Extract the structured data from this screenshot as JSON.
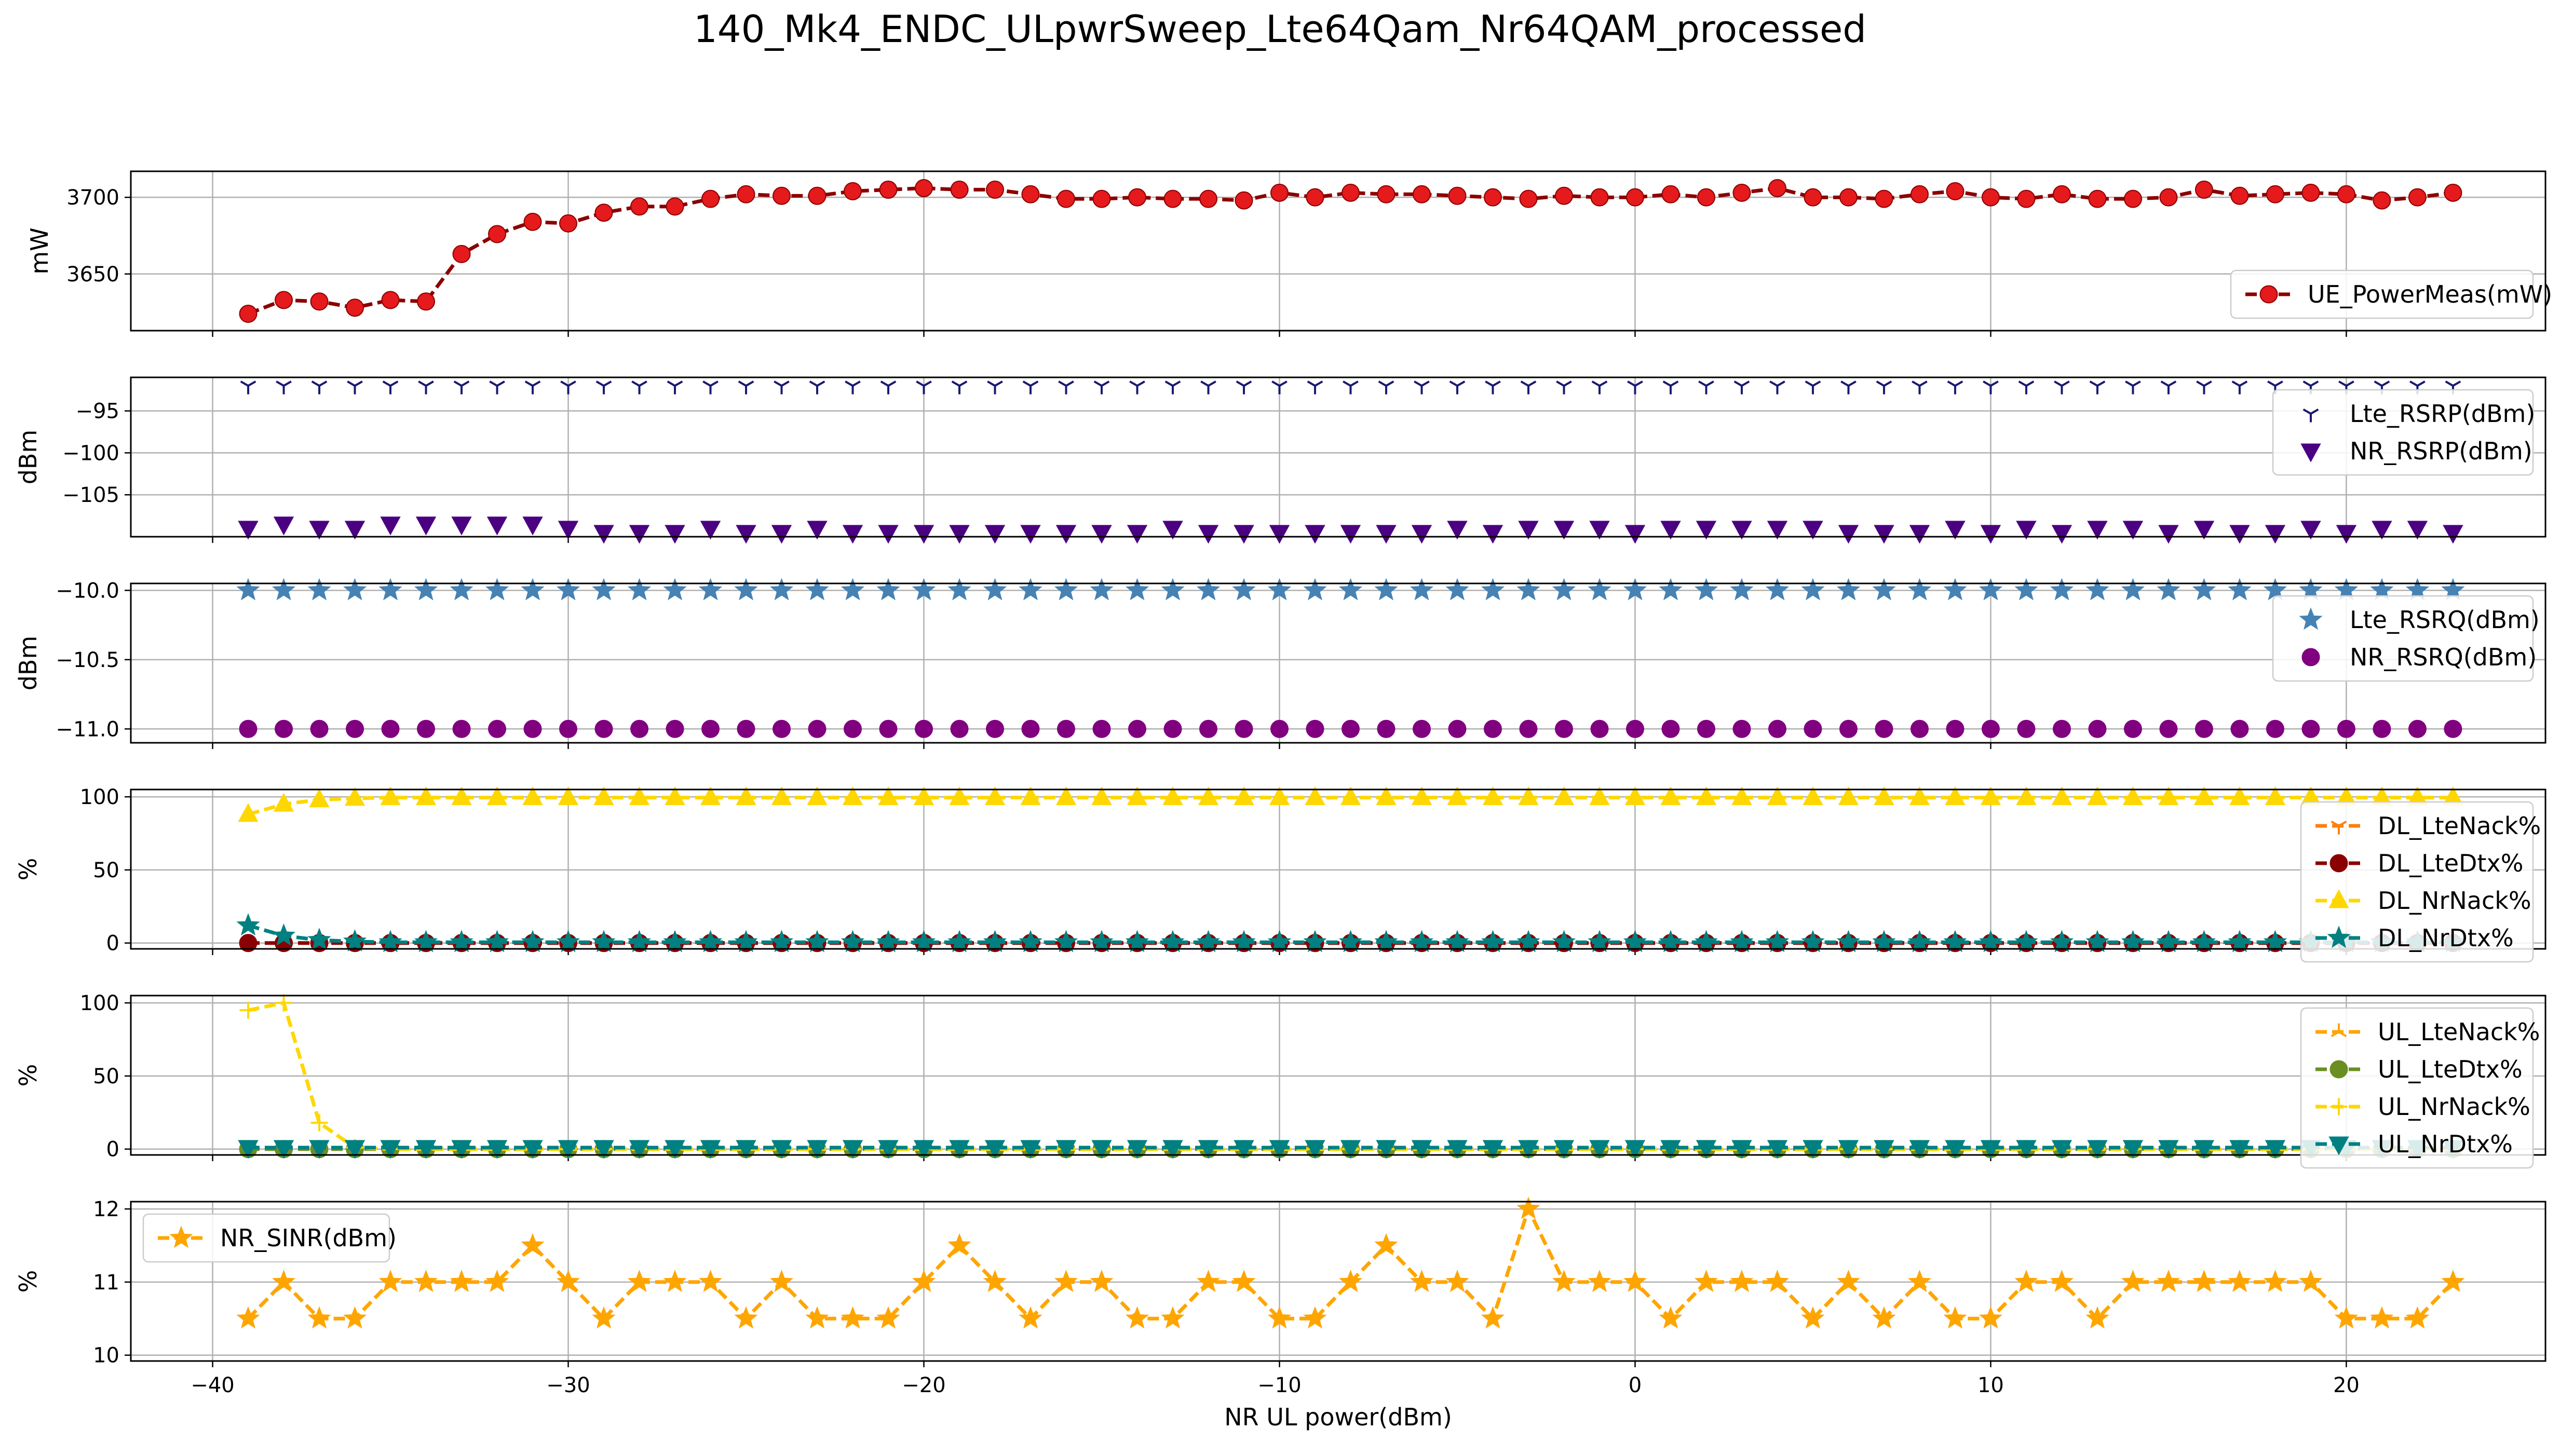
{
  "title": "140_Mk4_ENDC_ULpwrSweep_Lte64Qam_Nr64QAM_processed",
  "chart_data": {
    "type": "line",
    "xlabel": "NR UL power(dBm)",
    "xlim": [
      -42.3,
      25.6
    ],
    "xticks": [
      -40,
      -30,
      -20,
      -10,
      0,
      10,
      20
    ],
    "grid": true,
    "x": [
      -39,
      -38,
      -37,
      -36,
      -35,
      -34,
      -33,
      -32,
      -31,
      -30,
      -29,
      -28,
      -27,
      -26,
      -25,
      -24,
      -23,
      -22,
      -21,
      -20,
      -19,
      -18,
      -17,
      -16,
      -15,
      -14,
      -13,
      -12,
      -11,
      -10,
      -9,
      -8,
      -7,
      -6,
      -5,
      -4,
      -3,
      -2,
      -1,
      0,
      1,
      2,
      3,
      4,
      5,
      6,
      7,
      8,
      9,
      10,
      11,
      12,
      13,
      14,
      15,
      16,
      17,
      18,
      19,
      20,
      21,
      22,
      23
    ],
    "panels": [
      {
        "ylabel": "mW",
        "ylim": [
          3613,
          3717
        ],
        "yticks": [
          3650,
          3700
        ],
        "legend_loc": "lower-right",
        "series": [
          {
            "name": "UE_PowerMeas(mW)",
            "color": "#8b0000",
            "marker": "circle",
            "marker_color": "#e41a1c",
            "line": "dashed",
            "values": [
              3624,
              3633,
              3632,
              3628,
              3633,
              3632,
              3663,
              3676,
              3684,
              3683,
              3690,
              3694,
              3694,
              3699,
              3702,
              3701,
              3701,
              3704,
              3705,
              3706,
              3705,
              3705,
              3702,
              3699,
              3699,
              3700,
              3699,
              3699,
              3698,
              3703,
              3700,
              3703,
              3702,
              3702,
              3701,
              3700,
              3699,
              3701,
              3700,
              3700,
              3702,
              3700,
              3703,
              3706,
              3700,
              3700,
              3699,
              3702,
              3704,
              3700,
              3699,
              3702,
              3699,
              3699,
              3700,
              3705,
              3701,
              3702,
              3703,
              3702,
              3698,
              3700,
              3703
            ]
          }
        ]
      },
      {
        "ylabel": "dBm",
        "ylim": [
          -110,
          -91
        ],
        "yticks": [
          -95,
          -100,
          -105
        ],
        "legend_loc": "upper-right",
        "series": [
          {
            "name": "Lte_RSRP(dBm)",
            "color": "#191970",
            "marker": "tri-down",
            "line": "none",
            "constant": -92
          },
          {
            "name": "NR_RSRP(dBm)",
            "color": "#4b0082",
            "marker": "triangle-down",
            "line": "none",
            "values": [
              -109,
              -108.5,
              -109,
              -109,
              -108.5,
              -108.5,
              -108.5,
              -108.5,
              -108.5,
              -109,
              -109.5,
              -109.5,
              -109.5,
              -109,
              -109.5,
              -109.5,
              -109,
              -109.5,
              -109.5,
              -109.5,
              -109.5,
              -109.5,
              -109.5,
              -109.5,
              -109.5,
              -109.5,
              -109,
              -109.5,
              -109.5,
              -109.5,
              -109.5,
              -109.5,
              -109.5,
              -109.5,
              -109,
              -109.5,
              -109,
              -109,
              -109,
              -109.5,
              -109,
              -109,
              -109,
              -109,
              -109,
              -109.5,
              -109.5,
              -109.5,
              -109,
              -109.5,
              -109,
              -109.5,
              -109,
              -109,
              -109.5,
              -109,
              -109.5,
              -109.5,
              -109,
              -109.5,
              -109,
              -109,
              -109.5
            ]
          }
        ]
      },
      {
        "ylabel": "dBm",
        "ylim": [
          -11.1,
          -9.95
        ],
        "yticks": [
          -10.0,
          -10.5,
          -11.0
        ],
        "ytick_labels": [
          "−10.0",
          "−10.5",
          "−11.0"
        ],
        "legend_loc": "upper-right",
        "series": [
          {
            "name": "Lte_RSRQ(dBm)",
            "color": "#4682b4",
            "marker": "star",
            "line": "none",
            "constant": -10.0
          },
          {
            "name": "NR_RSRQ(dBm)",
            "color": "#800080",
            "marker": "circle",
            "line": "none",
            "constant": -11.0
          }
        ]
      },
      {
        "ylabel": "%",
        "ylim": [
          -4,
          105
        ],
        "yticks": [
          0,
          50,
          100
        ],
        "legend_loc": "upper-right",
        "series": [
          {
            "name": "DL_LteNack%",
            "color": "#ff7f0e",
            "marker": "tri-down",
            "line": "dashed",
            "constant": 0
          },
          {
            "name": "DL_LteDtx%",
            "color": "#8b0000",
            "marker": "circle",
            "line": "dashed",
            "constant": 0
          },
          {
            "name": "DL_NrNack%",
            "color": "#ffd700",
            "marker": "triangle-up",
            "line": "dashed",
            "values": [
              88,
              95,
              98,
              99,
              99.5,
              99.5,
              99.5,
              99.5,
              99.5,
              99.5,
              99.5,
              99.5,
              99.5,
              99.5,
              99.5,
              99.5,
              99.5,
              99.5,
              99.5,
              99.5,
              99.5,
              99.5,
              99.5,
              99.5,
              99.5,
              99.5,
              99.5,
              99.5,
              99.5,
              99.5,
              99.5,
              99.5,
              99.5,
              99.5,
              99.5,
              99.5,
              99.5,
              99.5,
              99.5,
              99.5,
              99.5,
              99.5,
              99.5,
              99.5,
              99.5,
              99.5,
              99.5,
              99.5,
              99.5,
              99.5,
              99.5,
              99.5,
              99.5,
              99.5,
              99.5,
              99.5,
              99.5,
              99.5,
              99.5,
              99.5,
              99.5,
              99.5,
              99.5
            ]
          },
          {
            "name": "DL_NrDtx%",
            "color": "#008080",
            "marker": "star",
            "line": "dashed",
            "values": [
              12,
              5,
              2,
              1,
              0.5,
              0.5,
              0.5,
              0.5,
              0.5,
              0.5,
              0.5,
              0.5,
              0.5,
              0.5,
              0.5,
              0.5,
              0.5,
              0.5,
              0.5,
              0.5,
              0.5,
              0.5,
              0.5,
              0.5,
              0.5,
              0.5,
              0.5,
              0.5,
              0.5,
              0.5,
              0.5,
              0.5,
              0.5,
              0.5,
              0.5,
              0.5,
              0.5,
              0.5,
              0.5,
              0.5,
              0.5,
              0.5,
              0.5,
              0.5,
              0.5,
              0.5,
              0.5,
              0.5,
              0.5,
              0.5,
              0.5,
              0.5,
              0.5,
              0.5,
              0.5,
              0.5,
              0.5,
              0.5,
              0.5,
              0.5,
              0.5,
              0.5,
              0.5
            ]
          }
        ]
      },
      {
        "ylabel": "%",
        "ylim": [
          -4,
          105
        ],
        "yticks": [
          0,
          50,
          100
        ],
        "legend_loc": "upper-right",
        "series": [
          {
            "name": "UL_LteNack%",
            "color": "#ffa500",
            "marker": "tri-up",
            "line": "dashed",
            "constant": 0
          },
          {
            "name": "UL_LteDtx%",
            "color": "#6b8e23",
            "marker": "circle",
            "line": "dashed",
            "constant": 0
          },
          {
            "name": "UL_NrNack%",
            "color": "#ffd700",
            "marker": "plus",
            "line": "dashed",
            "values": [
              95,
              100,
              18,
              1,
              0,
              0,
              0,
              0,
              0,
              0,
              0,
              0,
              0,
              0,
              0,
              0,
              0,
              0,
              0,
              0,
              0,
              0,
              0,
              0,
              0,
              0,
              0,
              0,
              0,
              0,
              0,
              0,
              0,
              0,
              0,
              0,
              0,
              0,
              0,
              0,
              0,
              0,
              0,
              0,
              0,
              0,
              0,
              0,
              0,
              0,
              0,
              0,
              0,
              0,
              0,
              0,
              0,
              0,
              0,
              0,
              0,
              0,
              0
            ]
          },
          {
            "name": "UL_NrDtx%",
            "color": "#008080",
            "marker": "triangle-down",
            "line": "dashed",
            "constant": 1
          }
        ]
      },
      {
        "ylabel": "%",
        "ylim": [
          9.92,
          12.1
        ],
        "yticks": [
          10,
          11,
          12
        ],
        "legend_loc": "upper-left",
        "series": [
          {
            "name": "NR_SINR(dBm)",
            "color": "#ffa500",
            "marker": "star",
            "line": "dashed",
            "values": [
              10.5,
              11,
              10.5,
              10.5,
              11,
              11,
              11,
              11,
              11.5,
              11,
              10.5,
              11,
              11,
              11,
              10.5,
              11,
              10.5,
              10.5,
              10.5,
              11,
              11.5,
              11,
              10.5,
              11,
              11,
              10.5,
              10.5,
              11,
              11,
              10.5,
              10.5,
              11,
              11.5,
              11,
              11,
              10.5,
              12,
              11,
              11,
              11,
              10.5,
              11,
              11,
              11,
              10.5,
              11,
              10.5,
              11,
              10.5,
              10.5,
              11,
              11,
              10.5,
              11,
              11,
              11,
              11,
              11,
              11,
              10.5,
              10.5,
              10.5,
              11
            ]
          }
        ]
      }
    ]
  }
}
